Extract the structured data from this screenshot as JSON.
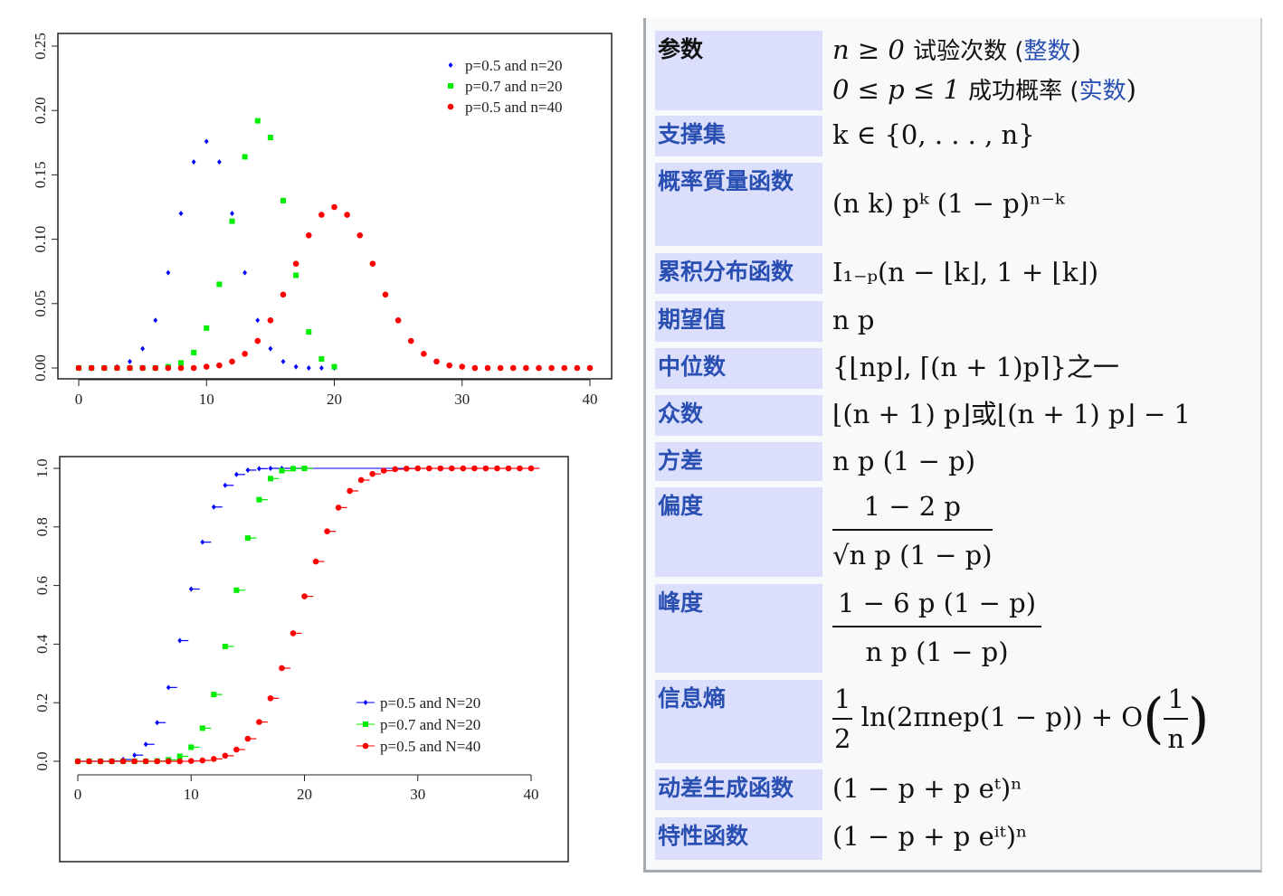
{
  "chart_data": [
    {
      "type": "scatter",
      "title": "",
      "xlabel": "",
      "ylabel": "",
      "xlim": [
        0,
        40
      ],
      "ylim": [
        0,
        0.25
      ],
      "xticks": [
        "0",
        "10",
        "20",
        "30",
        "40"
      ],
      "yticks": [
        "0.00",
        "0.05",
        "0.10",
        "0.15",
        "0.20",
        "0.25"
      ],
      "legend_position": "top-right",
      "series": [
        {
          "name": "p=0.5 and n=20",
          "color": "#0000ff",
          "marker": "diamond",
          "x_start": 0,
          "values": [
            0,
            0,
            0,
            0.001,
            0.005,
            0.015,
            0.037,
            0.074,
            0.12,
            0.16,
            0.176,
            0.16,
            0.12,
            0.074,
            0.037,
            0.015,
            0.005,
            0.001,
            0,
            0,
            0
          ]
        },
        {
          "name": "p=0.7 and n=20",
          "color": "#00ee00",
          "marker": "square",
          "x_start": 0,
          "values": [
            0,
            0,
            0,
            0,
            0,
            0,
            0,
            0.001,
            0.004,
            0.012,
            0.031,
            0.065,
            0.114,
            0.164,
            0.192,
            0.179,
            0.13,
            0.072,
            0.028,
            0.007,
            0.001
          ]
        },
        {
          "name": "p=0.5 and n=40",
          "color": "#ff0000",
          "marker": "circle",
          "x_start": 0,
          "values": [
            0,
            0,
            0,
            0,
            0,
            0,
            0,
            0,
            0,
            0,
            0.001,
            0.002,
            0.005,
            0.011,
            0.021,
            0.037,
            0.057,
            0.081,
            0.103,
            0.119,
            0.125,
            0.119,
            0.103,
            0.081,
            0.057,
            0.037,
            0.021,
            0.011,
            0.005,
            0.002,
            0.001,
            0,
            0,
            0,
            0,
            0,
            0,
            0,
            0,
            0,
            0
          ]
        }
      ]
    },
    {
      "type": "line",
      "title": "",
      "xlabel": "",
      "ylabel": "",
      "xlim": [
        0,
        40
      ],
      "ylim": [
        0,
        1
      ],
      "xticks": [
        "0",
        "10",
        "20",
        "30",
        "40"
      ],
      "yticks": [
        "0.0",
        "0.2",
        "0.4",
        "0.6",
        "0.8",
        "1.0"
      ],
      "legend_position": "bottom-right",
      "series": [
        {
          "name": "p=0.5 and N=20",
          "color": "#0000ff",
          "marker": "diamond",
          "values": [
            0,
            0,
            0,
            0.001,
            0.006,
            0.021,
            0.058,
            0.132,
            0.252,
            0.412,
            0.588,
            0.748,
            0.868,
            0.942,
            0.979,
            0.994,
            0.999,
            1,
            1,
            1,
            1
          ]
        },
        {
          "name": "p=0.7 and N=20",
          "color": "#00ee00",
          "marker": "square",
          "values": [
            0,
            0,
            0,
            0,
            0,
            0,
            0,
            0.001,
            0.005,
            0.017,
            0.048,
            0.113,
            0.228,
            0.392,
            0.584,
            0.762,
            0.893,
            0.965,
            0.992,
            0.999,
            1
          ]
        },
        {
          "name": "p=0.5 and N=40",
          "color": "#ff0000",
          "marker": "circle",
          "values": [
            0,
            0,
            0,
            0,
            0,
            0,
            0,
            0,
            0,
            0,
            0.001,
            0.003,
            0.008,
            0.019,
            0.04,
            0.077,
            0.134,
            0.215,
            0.318,
            0.437,
            0.563,
            0.682,
            0.785,
            0.866,
            0.923,
            0.96,
            0.981,
            0.992,
            0.997,
            0.999,
            1,
            1,
            1,
            1,
            1,
            1,
            1,
            1,
            1,
            1,
            1
          ]
        }
      ]
    }
  ],
  "infobox": {
    "rows": [
      {
        "label": "参数",
        "v1a": "n ≥ 0 ",
        "v1b": "试验次数 (",
        "v1c": "整数",
        "v1d": ")",
        "v2a": "0 ≤ p ≤ 1 ",
        "v2b": "成功概率 (",
        "v2c": "实数",
        "v2d": ")"
      },
      {
        "label": "支撑集",
        "value": "k ∈ {0, . . . , n}"
      },
      {
        "label": "概率質量函数",
        "value": "(n k) pᵏ (1 − p)ⁿ⁻ᵏ"
      },
      {
        "label": "累积分布函数",
        "value": "I₁₋ₚ(n − ⌊k⌋, 1 + ⌊k⌋)"
      },
      {
        "label": "期望值",
        "value": "n p"
      },
      {
        "label": "中位数",
        "value": "{⌊np⌋, ⌈(n + 1)p⌉}之一"
      },
      {
        "label": "众数",
        "value": "⌊(n + 1) p⌋或⌊(n + 1) p⌋ − 1"
      },
      {
        "label": "方差",
        "value": "n p (1 − p)"
      },
      {
        "label": "偏度",
        "num": "1 − 2 p",
        "den": "√n p (1 − p)"
      },
      {
        "label": "峰度",
        "num": "1 − 6 p (1 − p)",
        "den": "n p (1 − p)"
      },
      {
        "label": "信息熵",
        "num": "1",
        "den": "2",
        "mid": " ln(2πnep(1 − p)) + O",
        "num2": "1",
        "den2": "n"
      },
      {
        "label": "动差生成函数",
        "value": "(1 − p + p eᵗ)ⁿ"
      },
      {
        "label": "特性函数",
        "value": "(1 − p + p eⁱᵗ)ⁿ"
      }
    ]
  }
}
